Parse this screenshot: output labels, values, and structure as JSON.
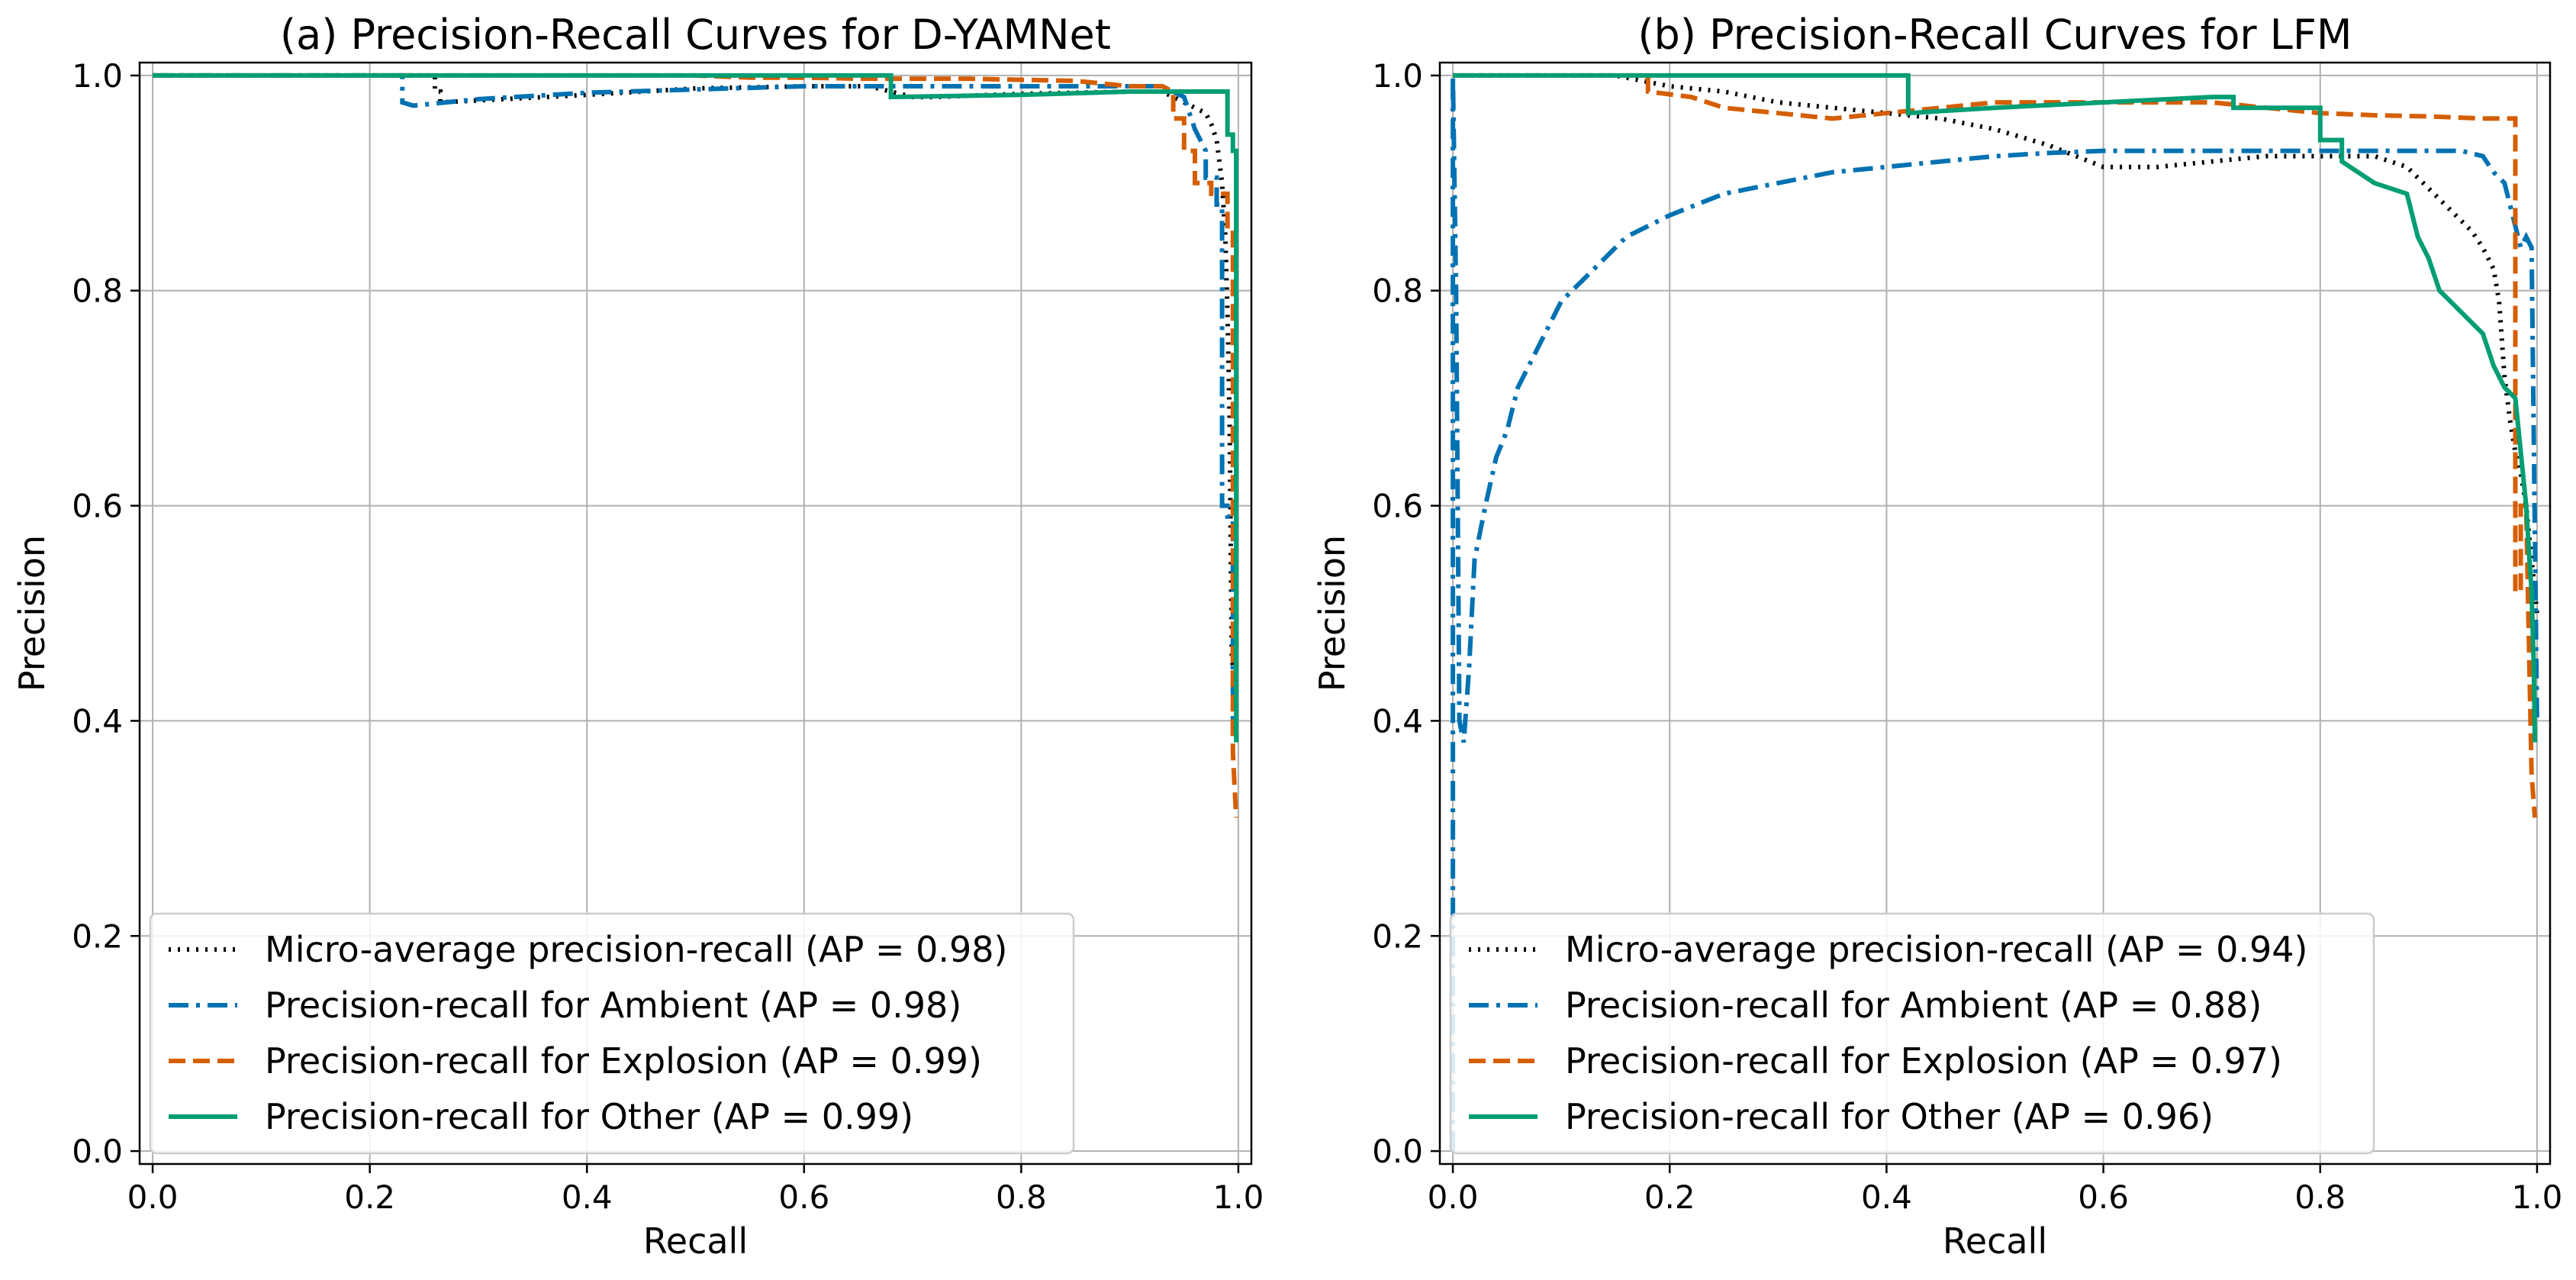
{
  "chart_data": [
    {
      "type": "line",
      "title": "(a) Precision-Recall Curves for D-YAMNet",
      "xlabel": "Recall",
      "ylabel": "Precision",
      "xlim": [
        0.0,
        1.0
      ],
      "ylim": [
        0.0,
        1.0
      ],
      "xticks": [
        "0.0",
        "0.2",
        "0.4",
        "0.6",
        "0.8",
        "1.0"
      ],
      "yticks": [
        "0.0",
        "0.2",
        "0.4",
        "0.6",
        "0.8",
        "1.0"
      ],
      "grid": true,
      "legend_position": "lower-left",
      "series": [
        {
          "name": "Micro-average precision-recall (AP = 0.98)",
          "color": "#000000",
          "dash": "dotted",
          "x": [
            0.0,
            0.26,
            0.26,
            0.265,
            0.265,
            0.4,
            0.5,
            0.6,
            0.64,
            0.66,
            0.68,
            0.7,
            0.72,
            0.8,
            0.9,
            0.93,
            0.95,
            0.96,
            0.97,
            0.975,
            0.98,
            0.985,
            0.988,
            0.99,
            0.992,
            0.993,
            0.994,
            0.995,
            0.996
          ],
          "y": [
            1.0,
            1.0,
            0.985,
            0.985,
            0.975,
            0.982,
            0.988,
            0.99,
            0.99,
            0.99,
            0.985,
            0.98,
            0.98,
            0.983,
            0.985,
            0.985,
            0.975,
            0.97,
            0.965,
            0.955,
            0.94,
            0.9,
            0.85,
            0.78,
            0.68,
            0.56,
            0.46,
            0.45,
            0.4
          ]
        },
        {
          "name": "Precision-recall for Ambient (AP = 0.98)",
          "color": "#0072b2",
          "dash": "dashdot",
          "x": [
            0.0,
            0.23,
            0.23,
            0.24,
            0.3,
            0.4,
            0.5,
            0.6,
            0.7,
            0.8,
            0.9,
            0.93,
            0.95,
            0.96,
            0.97,
            0.97,
            0.98,
            0.98,
            0.985,
            0.985,
            0.99,
            0.99,
            0.995,
            0.995
          ],
          "y": [
            1.0,
            1.0,
            0.975,
            0.972,
            0.978,
            0.984,
            0.987,
            0.99,
            0.99,
            0.99,
            0.99,
            0.99,
            0.98,
            0.95,
            0.93,
            0.905,
            0.905,
            0.88,
            0.88,
            0.6,
            0.6,
            0.59,
            0.59,
            0.38
          ]
        },
        {
          "name": "Precision-recall for Explosion (AP = 0.99)",
          "color": "#d55e00",
          "dash": "dashed",
          "x": [
            0.0,
            0.5,
            0.55,
            0.6,
            0.65,
            0.7,
            0.75,
            0.8,
            0.85,
            0.9,
            0.93,
            0.94,
            0.94,
            0.95,
            0.95,
            0.96,
            0.96,
            0.975,
            0.975,
            0.99,
            0.99,
            0.995,
            0.995,
            0.998
          ],
          "y": [
            1.0,
            1.0,
            0.998,
            0.998,
            0.997,
            0.997,
            0.997,
            0.996,
            0.995,
            0.99,
            0.99,
            0.985,
            0.96,
            0.96,
            0.93,
            0.93,
            0.9,
            0.9,
            0.89,
            0.89,
            0.86,
            0.86,
            0.37,
            0.31
          ]
        },
        {
          "name": "Precision-recall for Other (AP = 0.99)",
          "color": "#009e73",
          "dash": "solid",
          "x": [
            0.0,
            0.68,
            0.68,
            0.8,
            0.9,
            0.95,
            0.99,
            0.99,
            0.995,
            0.995,
            0.998,
            0.998
          ],
          "y": [
            1.0,
            1.0,
            0.98,
            0.982,
            0.985,
            0.985,
            0.985,
            0.945,
            0.945,
            0.93,
            0.93,
            0.38
          ]
        }
      ]
    },
    {
      "type": "line",
      "title": "(b) Precision-Recall Curves for LFM",
      "xlabel": "Recall",
      "ylabel": "Precision",
      "xlim": [
        0.0,
        1.0
      ],
      "ylim": [
        0.0,
        1.0
      ],
      "xticks": [
        "0.0",
        "0.2",
        "0.4",
        "0.6",
        "0.8",
        "1.0"
      ],
      "yticks": [
        "0.0",
        "0.2",
        "0.4",
        "0.6",
        "0.8",
        "1.0"
      ],
      "grid": true,
      "legend_position": "lower-left",
      "series": [
        {
          "name": "Micro-average precision-recall (AP = 0.94)",
          "color": "#000000",
          "dash": "dotted",
          "x": [
            0.0,
            0.15,
            0.2,
            0.25,
            0.3,
            0.35,
            0.4,
            0.45,
            0.5,
            0.55,
            0.6,
            0.65,
            0.7,
            0.75,
            0.8,
            0.85,
            0.88,
            0.9,
            0.92,
            0.94,
            0.95,
            0.96,
            0.965,
            0.97,
            0.975,
            0.98,
            0.985,
            0.99,
            0.995,
            1.0
          ],
          "y": [
            1.0,
            1.0,
            0.99,
            0.985,
            0.975,
            0.97,
            0.965,
            0.96,
            0.95,
            0.935,
            0.915,
            0.915,
            0.92,
            0.925,
            0.925,
            0.925,
            0.915,
            0.895,
            0.875,
            0.855,
            0.84,
            0.82,
            0.79,
            0.72,
            0.68,
            0.65,
            0.63,
            0.6,
            0.55,
            0.5
          ]
        },
        {
          "name": "Precision-recall for Ambient (AP = 0.88)",
          "color": "#0072b2",
          "dash": "dashdot",
          "x": [
            0.0,
            0.0,
            0.003,
            0.006,
            0.01,
            0.015,
            0.02,
            0.03,
            0.04,
            0.05,
            0.06,
            0.07,
            0.08,
            0.09,
            0.1,
            0.12,
            0.14,
            0.16,
            0.18,
            0.2,
            0.25,
            0.3,
            0.35,
            0.4,
            0.45,
            0.5,
            0.55,
            0.6,
            0.65,
            0.7,
            0.75,
            0.8,
            0.85,
            0.9,
            0.93,
            0.95,
            0.96,
            0.97,
            0.975,
            0.98,
            0.985,
            0.99,
            0.995,
            1.0
          ],
          "y": [
            0.0,
            1.0,
            0.8,
            0.4,
            0.38,
            0.45,
            0.55,
            0.6,
            0.645,
            0.67,
            0.71,
            0.73,
            0.75,
            0.77,
            0.79,
            0.81,
            0.83,
            0.85,
            0.86,
            0.87,
            0.89,
            0.9,
            0.91,
            0.915,
            0.92,
            0.925,
            0.928,
            0.93,
            0.93,
            0.93,
            0.93,
            0.93,
            0.93,
            0.93,
            0.93,
            0.925,
            0.91,
            0.9,
            0.88,
            0.86,
            0.84,
            0.85,
            0.84,
            0.4
          ]
        },
        {
          "name": "Precision-recall for Explosion (AP = 0.97)",
          "color": "#d55e00",
          "dash": "dashed",
          "x": [
            0.0,
            0.18,
            0.18,
            0.22,
            0.25,
            0.3,
            0.35,
            0.4,
            0.45,
            0.5,
            0.55,
            0.6,
            0.65,
            0.7,
            0.75,
            0.8,
            0.85,
            0.9,
            0.95,
            0.98,
            0.98,
            0.985,
            0.985,
            0.99,
            0.995,
            0.998
          ],
          "y": [
            1.0,
            1.0,
            0.985,
            0.98,
            0.97,
            0.965,
            0.96,
            0.965,
            0.97,
            0.975,
            0.975,
            0.975,
            0.975,
            0.975,
            0.97,
            0.965,
            0.963,
            0.962,
            0.96,
            0.96,
            0.52,
            0.52,
            0.6,
            0.6,
            0.35,
            0.31
          ]
        },
        {
          "name": "Precision-recall for Other (AP = 0.96)",
          "color": "#009e73",
          "dash": "solid",
          "x": [
            0.0,
            0.42,
            0.42,
            0.5,
            0.6,
            0.7,
            0.72,
            0.72,
            0.8,
            0.8,
            0.82,
            0.82,
            0.85,
            0.88,
            0.89,
            0.9,
            0.91,
            0.92,
            0.93,
            0.94,
            0.95,
            0.96,
            0.97,
            0.98,
            0.985,
            0.99,
            0.993,
            0.995,
            0.997,
            0.998
          ],
          "y": [
            1.0,
            1.0,
            0.965,
            0.97,
            0.975,
            0.98,
            0.98,
            0.97,
            0.97,
            0.94,
            0.94,
            0.92,
            0.9,
            0.89,
            0.85,
            0.83,
            0.8,
            0.79,
            0.78,
            0.77,
            0.76,
            0.73,
            0.71,
            0.7,
            0.65,
            0.6,
            0.55,
            0.52,
            0.45,
            0.38
          ]
        }
      ]
    }
  ]
}
